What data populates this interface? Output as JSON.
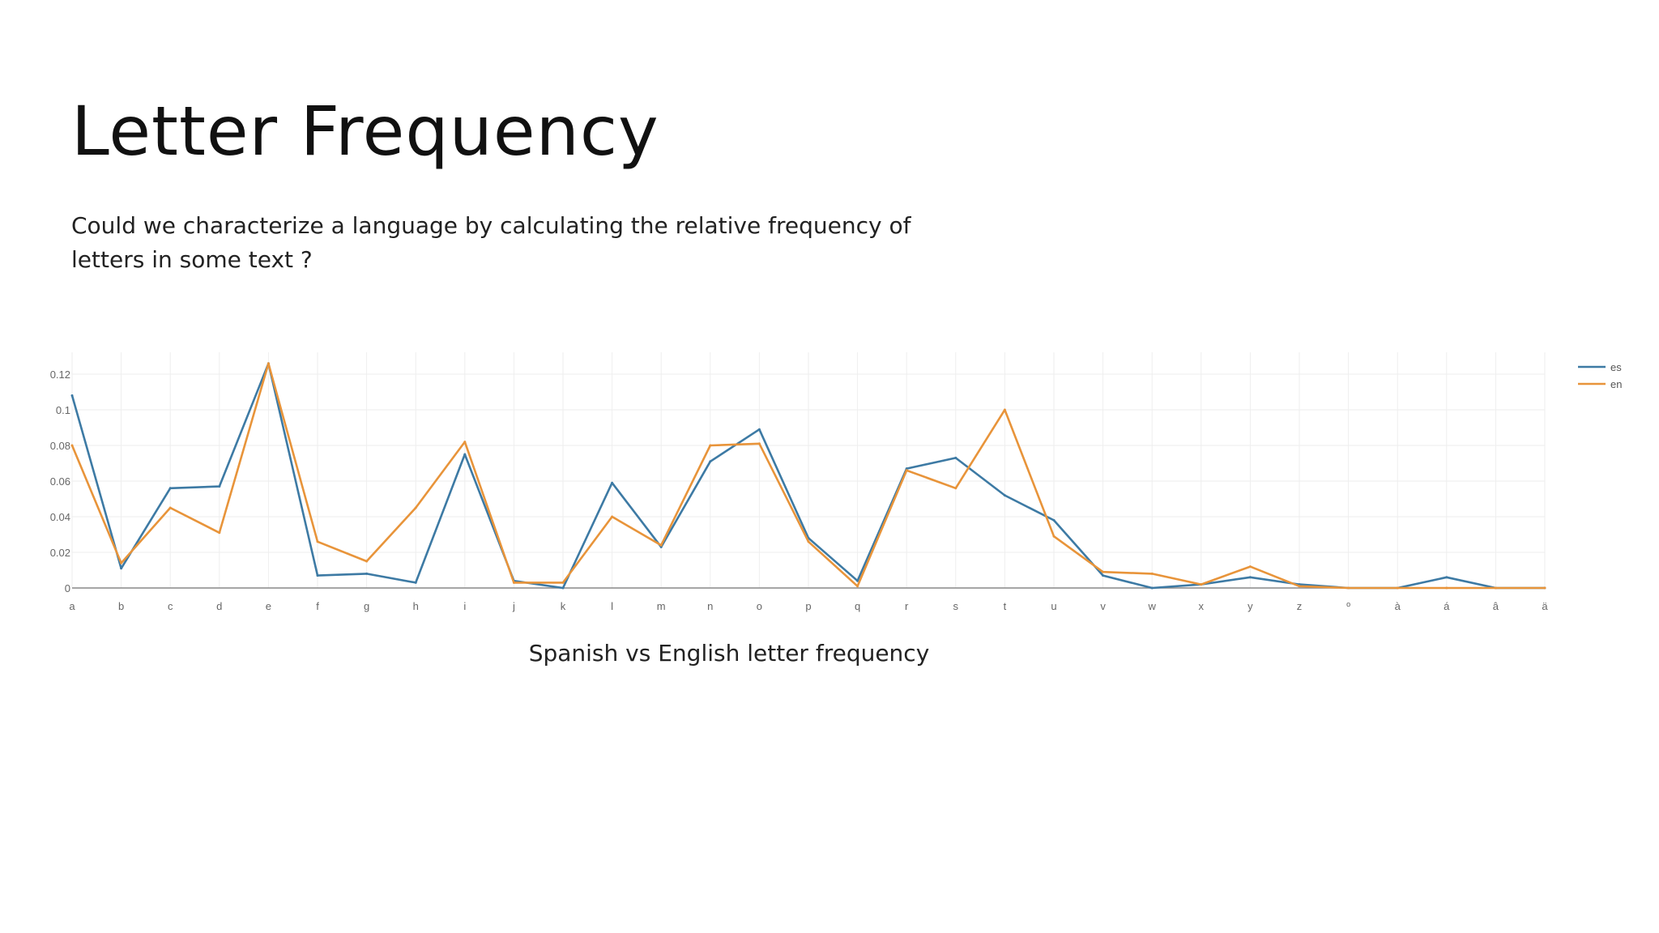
{
  "slide": {
    "title": "Letter Frequency",
    "subtitle": "Could we characterize a language by calculating the relative frequency of letters in some text ?",
    "caption": "Spanish vs English letter frequency"
  },
  "chart_data": {
    "type": "line",
    "title": "",
    "xlabel": "",
    "ylabel": "",
    "ylim": [
      0,
      0.13
    ],
    "yticks": [
      0,
      0.02,
      0.04,
      0.06,
      0.08,
      0.1,
      0.12
    ],
    "ytick_labels": [
      "0",
      "0.02",
      "0.04",
      "0.06",
      "0.08",
      "0.1",
      "0.12"
    ],
    "grid": true,
    "legend_position": "top-right",
    "categories": [
      "a",
      "b",
      "c",
      "d",
      "e",
      "f",
      "g",
      "h",
      "i",
      "j",
      "k",
      "l",
      "m",
      "n",
      "o",
      "p",
      "q",
      "r",
      "s",
      "t",
      "u",
      "v",
      "w",
      "x",
      "y",
      "z",
      "º",
      "à",
      "á",
      "â",
      "ä"
    ],
    "series": [
      {
        "name": "es",
        "color": "#3d7aa4",
        "values": [
          0.108,
          0.011,
          0.056,
          0.057,
          0.126,
          0.007,
          0.008,
          0.003,
          0.075,
          0.004,
          0.0,
          0.059,
          0.023,
          0.071,
          0.089,
          0.028,
          0.004,
          0.067,
          0.073,
          0.052,
          0.038,
          0.007,
          0.0,
          0.002,
          0.006,
          0.002,
          0.0,
          0.0,
          0.006,
          0.0,
          0.0
        ]
      },
      {
        "name": "en",
        "color": "#e8943a",
        "values": [
          0.08,
          0.014,
          0.045,
          0.031,
          0.126,
          0.026,
          0.015,
          0.045,
          0.082,
          0.003,
          0.003,
          0.04,
          0.024,
          0.08,
          0.081,
          0.026,
          0.001,
          0.066,
          0.056,
          0.1,
          0.029,
          0.009,
          0.008,
          0.002,
          0.012,
          0.001,
          0.0,
          0.0,
          0.0,
          0.0,
          0.0
        ]
      }
    ]
  }
}
